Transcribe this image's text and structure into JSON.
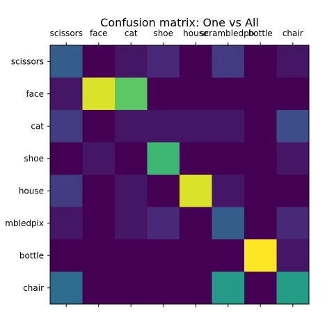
{
  "chart_data": {
    "type": "heatmap",
    "title": "Confusion matrix: One vs All",
    "x_categories": [
      "scissors",
      "face",
      "cat",
      "shoe",
      "house",
      "scrambledpix",
      "bottle",
      "chair"
    ],
    "y_categories": [
      "scissors",
      "face",
      "cat",
      "shoe",
      "house",
      "scrambledpix",
      "bottle",
      "chair"
    ],
    "y_tick_labels_shown": [
      "scissors",
      "face",
      "cat",
      "shoe",
      "house",
      "mbledpix",
      "bottle",
      "chair"
    ],
    "values": [
      [
        0.3,
        0.0,
        0.06,
        0.12,
        0.0,
        0.18,
        0.0,
        0.06
      ],
      [
        0.06,
        0.95,
        0.75,
        0.0,
        0.0,
        0.0,
        0.0,
        0.0
      ],
      [
        0.18,
        0.0,
        0.06,
        0.06,
        0.06,
        0.06,
        0.0,
        0.24
      ],
      [
        0.0,
        0.06,
        0.0,
        0.68,
        0.0,
        0.0,
        0.0,
        0.06
      ],
      [
        0.18,
        0.0,
        0.06,
        0.0,
        0.95,
        0.06,
        0.0,
        0.0
      ],
      [
        0.06,
        0.0,
        0.06,
        0.12,
        0.0,
        0.3,
        0.0,
        0.12
      ],
      [
        0.0,
        0.0,
        0.0,
        0.0,
        0.0,
        0.0,
        1.0,
        0.06
      ],
      [
        0.36,
        0.0,
        0.0,
        0.0,
        0.0,
        0.55,
        0.0,
        0.56
      ]
    ],
    "value_range": [
      0,
      1
    ],
    "colormap": "viridis",
    "x_ticks_position": "top",
    "grid": false,
    "legend": "none"
  }
}
